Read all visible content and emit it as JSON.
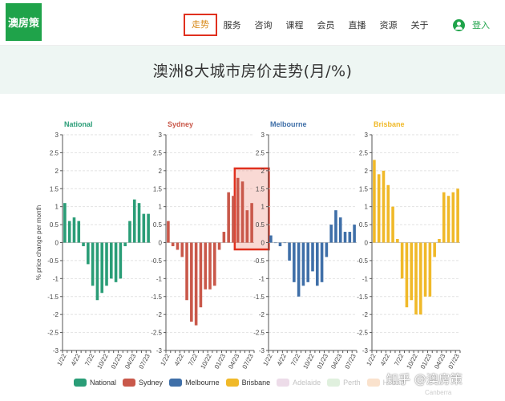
{
  "header": {
    "logo_text": "澳房策",
    "nav": [
      {
        "label": "走势",
        "active": true
      },
      {
        "label": "服务",
        "active": false
      },
      {
        "label": "咨询",
        "active": false
      },
      {
        "label": "课程",
        "active": false
      },
      {
        "label": "会员",
        "active": false
      },
      {
        "label": "直播",
        "active": false
      },
      {
        "label": "资源",
        "active": false
      },
      {
        "label": "关于",
        "active": false
      }
    ],
    "login_label": "登入"
  },
  "page_title": "澳洲8大城市房价走势(月/%)",
  "colors": {
    "brand_green": "#1fa34a",
    "highlight_red": "#e0301e",
    "national": "#2a9d77",
    "sydney": "#c9584a",
    "melbourne": "#3f6fa8",
    "brisbane": "#f0b929"
  },
  "chart_data": {
    "type": "bar",
    "ylabel": "% price change per month",
    "ylim": [
      -3,
      3
    ],
    "yticks": [
      3,
      2.5,
      2,
      1.5,
      1,
      0.5,
      0,
      -0.5,
      -1,
      -1.5,
      -2,
      -2.5,
      -3
    ],
    "x_tick_labels": [
      "1/22",
      "4/22",
      "7/22",
      "10/22",
      "01/23",
      "04/23",
      "07/23"
    ],
    "grid": true,
    "legend_position": "bottom",
    "highlight": {
      "panel": "Sydney",
      "from_index": 15,
      "to_index": 21
    },
    "panels": [
      {
        "name": "National",
        "color": "#2a9d77",
        "values": [
          1.1,
          0.6,
          0.7,
          0.6,
          -0.1,
          -0.6,
          -1.2,
          -1.6,
          -1.4,
          -1.2,
          -1.0,
          -1.1,
          -1.0,
          -0.1,
          0.6,
          1.2,
          1.1,
          0.8,
          0.8
        ]
      },
      {
        "name": "Sydney",
        "color": "#c9584a",
        "values": [
          0.6,
          -0.1,
          -0.2,
          -0.4,
          -1.6,
          -2.2,
          -2.3,
          -1.8,
          -1.3,
          -1.3,
          -1.2,
          -0.2,
          0.3,
          1.4,
          1.3,
          1.8,
          1.7,
          0.9,
          1.1
        ]
      },
      {
        "name": "Melbourne",
        "color": "#3f6fa8",
        "values": [
          0.2,
          0.0,
          -0.1,
          0.0,
          -0.5,
          -1.1,
          -1.5,
          -1.2,
          -1.1,
          -0.8,
          -1.2,
          -1.1,
          -0.4,
          0.5,
          0.9,
          0.7,
          0.3,
          0.3,
          0.5
        ]
      },
      {
        "name": "Brisbane",
        "color": "#f0b929",
        "values": [
          2.3,
          1.9,
          2.0,
          1.6,
          1.0,
          0.1,
          -1.0,
          -1.8,
          -1.6,
          -2.0,
          -2.0,
          -1.5,
          -1.5,
          -0.4,
          0.1,
          1.4,
          1.3,
          1.4,
          1.5
        ]
      }
    ],
    "legend": [
      {
        "name": "National",
        "color": "#2a9d77",
        "faded": false
      },
      {
        "name": "Sydney",
        "color": "#c9584a",
        "faded": false
      },
      {
        "name": "Melbourne",
        "color": "#3f6fa8",
        "faded": false
      },
      {
        "name": "Brisbane",
        "color": "#f0b929",
        "faded": false
      },
      {
        "name": "Adelaide",
        "color": "#c58fb9",
        "faded": true
      },
      {
        "name": "Perth",
        "color": "#9ccf94",
        "faded": true
      },
      {
        "name": "Hobart",
        "color": "#f0a35e",
        "faded": true
      }
    ]
  },
  "watermark": {
    "main": "知乎 @澳房策",
    "sub": "Canberra"
  }
}
